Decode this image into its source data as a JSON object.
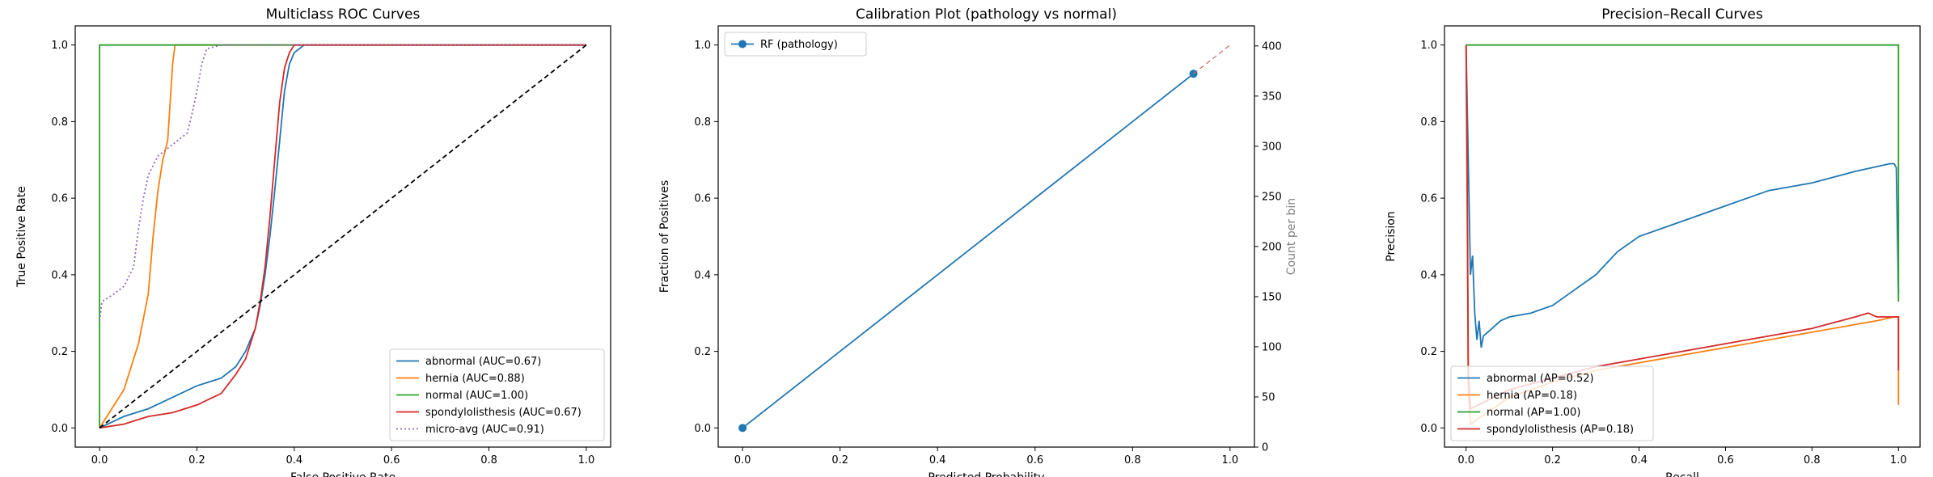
{
  "chart_data": [
    {
      "type": "line",
      "title": "Multiclass ROC Curves",
      "xlabel": "False Positive Rate",
      "ylabel": "True Positive Rate",
      "xlim": [
        -0.05,
        1.05
      ],
      "ylim": [
        -0.05,
        1.05
      ],
      "xticks": [
        "0.0",
        "0.2",
        "0.4",
        "0.6",
        "0.8",
        "1.0"
      ],
      "yticks": [
        "0.0",
        "0.2",
        "0.4",
        "0.6",
        "0.8",
        "1.0"
      ],
      "legend_position": "bottom-right",
      "grid": false,
      "series": [
        {
          "name": "abnormal (AUC=0.67)",
          "color": "#1f77b4",
          "dash": "solid",
          "x": [
            0,
            0.05,
            0.1,
            0.15,
            0.2,
            0.25,
            0.28,
            0.3,
            0.32,
            0.33,
            0.34,
            0.35,
            0.36,
            0.37,
            0.38,
            0.39,
            0.4,
            0.42,
            1.0
          ],
          "y": [
            0,
            0.03,
            0.05,
            0.08,
            0.11,
            0.13,
            0.16,
            0.2,
            0.26,
            0.32,
            0.4,
            0.5,
            0.62,
            0.75,
            0.88,
            0.95,
            0.98,
            1.0,
            1.0
          ]
        },
        {
          "name": "hernia (AUC=0.88)",
          "color": "#ff7f0e",
          "dash": "solid",
          "x": [
            0,
            0.05,
            0.08,
            0.1,
            0.11,
            0.12,
            0.13,
            0.14,
            0.145,
            0.15,
            0.155,
            1.0
          ],
          "y": [
            0,
            0.1,
            0.22,
            0.35,
            0.5,
            0.62,
            0.7,
            0.75,
            0.85,
            0.95,
            1.0,
            1.0
          ]
        },
        {
          "name": "normal (AUC=1.00)",
          "color": "#2ca02c",
          "dash": "solid",
          "x": [
            0,
            0,
            0,
            1.0
          ],
          "y": [
            0,
            0.28,
            1.0,
            1.0
          ]
        },
        {
          "name": "spondylolisthesis (AUC=0.67)",
          "color": "#d62728",
          "dash": "solid",
          "x": [
            0,
            0.05,
            0.1,
            0.15,
            0.2,
            0.25,
            0.28,
            0.3,
            0.32,
            0.33,
            0.34,
            0.35,
            0.36,
            0.37,
            0.38,
            0.39,
            0.4,
            1.0
          ],
          "y": [
            0,
            0.01,
            0.03,
            0.04,
            0.06,
            0.09,
            0.14,
            0.18,
            0.26,
            0.33,
            0.42,
            0.55,
            0.7,
            0.85,
            0.94,
            0.98,
            1.0,
            1.0
          ]
        },
        {
          "name": "micro-avg (AUC=0.91)",
          "color": "#9467bd",
          "dash": "dotted",
          "x": [
            0,
            0.005,
            0.03,
            0.05,
            0.07,
            0.08,
            0.09,
            0.1,
            0.12,
            0.14,
            0.16,
            0.18,
            0.19,
            0.2,
            0.21,
            0.22,
            0.25,
            0.3,
            1.0
          ],
          "y": [
            0.28,
            0.33,
            0.35,
            0.37,
            0.42,
            0.52,
            0.6,
            0.66,
            0.71,
            0.73,
            0.75,
            0.77,
            0.82,
            0.88,
            0.95,
            0.99,
            1.0,
            1.0,
            1.0
          ]
        },
        {
          "name": "",
          "color": "#000000",
          "dash": "dashed",
          "x": [
            0,
            1.0
          ],
          "y": [
            0,
            1.0
          ]
        }
      ]
    },
    {
      "type": "line",
      "title": "Calibration Plot (pathology vs normal)",
      "xlabel": "Predicted Probability",
      "ylabel": "Fraction of Positives",
      "ylabel_right": "Count per bin",
      "xlim": [
        -0.05,
        1.05
      ],
      "ylim": [
        -0.05,
        1.05
      ],
      "ylim_right": [
        0,
        420
      ],
      "xticks": [
        "0.0",
        "0.2",
        "0.4",
        "0.6",
        "0.8",
        "1.0"
      ],
      "yticks": [
        "0.0",
        "0.2",
        "0.4",
        "0.6",
        "0.8",
        "1.0"
      ],
      "yticks_right": [
        "0",
        "50",
        "100",
        "150",
        "200",
        "250",
        "300",
        "350",
        "400"
      ],
      "legend_position": "top-left",
      "grid": false,
      "series": [
        {
          "name": "RF (pathology)",
          "color": "#1f77b4",
          "dash": "solid",
          "marker": "circle",
          "x": [
            0.0,
            0.925
          ],
          "y": [
            0.0,
            0.925
          ]
        },
        {
          "name": "",
          "color": "#c56a6a",
          "dash": "dashed",
          "x": [
            0.925,
            1.0
          ],
          "y": [
            0.925,
            1.0
          ]
        }
      ]
    },
    {
      "type": "line",
      "title": "Precision–Recall Curves",
      "xlabel": "Recall",
      "ylabel": "Precision",
      "xlim": [
        -0.05,
        1.05
      ],
      "ylim": [
        -0.05,
        1.05
      ],
      "xticks": [
        "0.0",
        "0.2",
        "0.4",
        "0.6",
        "0.8",
        "1.0"
      ],
      "yticks": [
        "0.0",
        "0.2",
        "0.4",
        "0.6",
        "0.8",
        "1.0"
      ],
      "legend_position": "bottom-left",
      "grid": false,
      "series": [
        {
          "name": "abnormal (AP=0.52)",
          "color": "#1f77b4",
          "dash": "solid",
          "x": [
            0,
            0.005,
            0.01,
            0.015,
            0.02,
            0.025,
            0.03,
            0.035,
            0.04,
            0.05,
            0.06,
            0.08,
            0.1,
            0.15,
            0.2,
            0.25,
            0.3,
            0.35,
            0.4,
            0.5,
            0.6,
            0.7,
            0.8,
            0.9,
            0.98,
            0.99,
            0.995,
            1.0
          ],
          "y": [
            1.0,
            0.7,
            0.4,
            0.45,
            0.3,
            0.23,
            0.28,
            0.21,
            0.24,
            0.25,
            0.26,
            0.28,
            0.29,
            0.3,
            0.32,
            0.36,
            0.4,
            0.46,
            0.5,
            0.54,
            0.58,
            0.62,
            0.64,
            0.67,
            0.69,
            0.69,
            0.68,
            0.35
          ]
        },
        {
          "name": "hernia (AP=0.18)",
          "color": "#ff7f0e",
          "dash": "solid",
          "x": [
            0,
            0.003,
            0.005,
            0.01,
            0.1,
            0.2,
            0.3,
            0.4,
            0.5,
            0.6,
            0.7,
            0.8,
            0.9,
            0.95,
            0.99,
            1.0,
            1.0
          ],
          "y": [
            1.0,
            0.5,
            0.1,
            0.01,
            0.08,
            0.12,
            0.15,
            0.17,
            0.19,
            0.21,
            0.23,
            0.25,
            0.27,
            0.28,
            0.29,
            0.29,
            0.06
          ]
        },
        {
          "name": "normal (AP=1.00)",
          "color": "#2ca02c",
          "dash": "solid",
          "x": [
            0,
            0.99,
            1.0,
            1.0
          ],
          "y": [
            1.0,
            1.0,
            1.0,
            0.33
          ]
        },
        {
          "name": "spondylolisthesis (AP=0.18)",
          "color": "#d62728",
          "dash": "solid",
          "x": [
            0,
            0.003,
            0.005,
            0.01,
            0.1,
            0.2,
            0.3,
            0.4,
            0.5,
            0.6,
            0.7,
            0.8,
            0.9,
            0.93,
            0.95,
            0.98,
            1.0,
            1.0
          ],
          "y": [
            1.0,
            0.6,
            0.15,
            0.05,
            0.1,
            0.13,
            0.16,
            0.18,
            0.2,
            0.22,
            0.24,
            0.26,
            0.29,
            0.3,
            0.29,
            0.29,
            0.29,
            0.15
          ]
        }
      ]
    }
  ]
}
